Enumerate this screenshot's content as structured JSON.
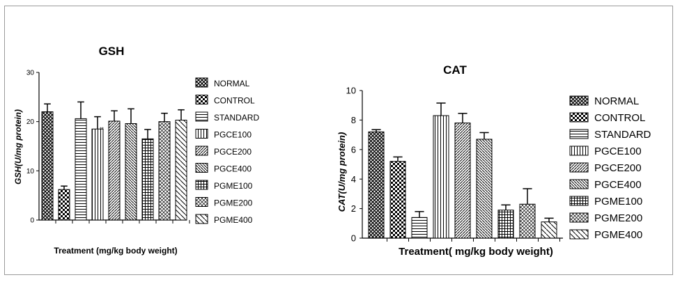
{
  "chart_data": [
    {
      "type": "bar",
      "title": "GSH",
      "xlabel": "Treatment (mg/kg body weight)",
      "ylabel": "GSH(U/mg protein)",
      "ylim": [
        0,
        30
      ],
      "yticks": [
        "0",
        "10",
        "20",
        "30"
      ],
      "legend_position": "right",
      "categories": [
        "NORMAL",
        "CONTROL",
        "STANDARD",
        "PGCE100",
        "PGCE200",
        "PGCE400",
        "PGME100",
        "PGME200",
        "PGME400"
      ],
      "values": [
        22,
        6.2,
        20.6,
        18.5,
        20.1,
        19.6,
        16.5,
        20,
        20.3
      ],
      "errors": [
        1.6,
        0.7,
        3.4,
        2.5,
        2.1,
        3.0,
        1.9,
        1.7,
        2.1
      ],
      "star_label": "**"
    },
    {
      "type": "bar",
      "title": "CAT",
      "xlabel": "Treatment( mg/kg body weight)",
      "ylabel": "CAT(U/mg protein)",
      "ylim": [
        0,
        10
      ],
      "yticks": [
        "0",
        "2",
        "4",
        "6",
        "8",
        "10"
      ],
      "legend_position": "right",
      "categories": [
        "NORMAL",
        "CONTROL",
        "STANDARD",
        "PGCE100",
        "PGCE200",
        "PGCE400",
        "PGME100",
        "PGME200",
        "PGME400"
      ],
      "values": [
        7.2,
        5.2,
        1.4,
        8.3,
        7.8,
        6.7,
        1.9,
        2.3,
        1.1
      ],
      "errors": [
        0.15,
        0.3,
        0.4,
        0.85,
        0.65,
        0.45,
        0.35,
        1.05,
        0.25
      ]
    }
  ]
}
